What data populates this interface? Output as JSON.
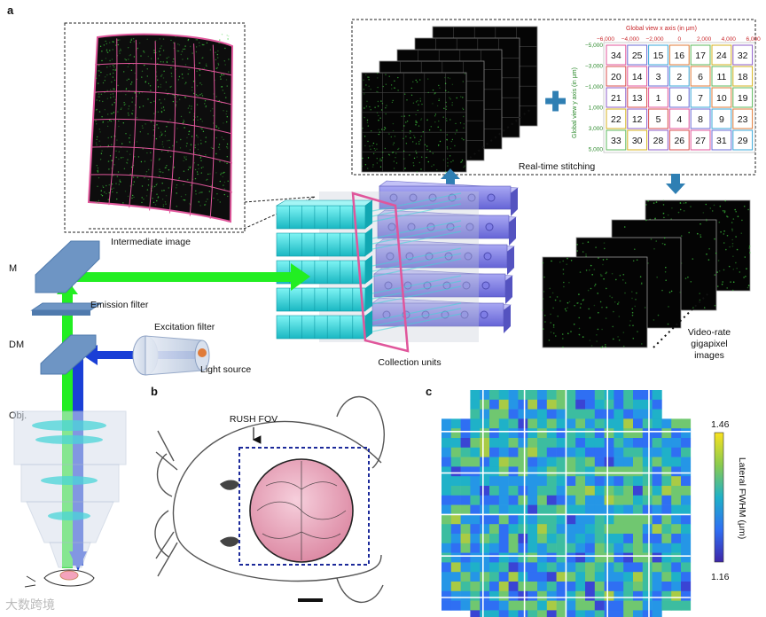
{
  "panels": {
    "a": "a",
    "b": "b",
    "c": "c"
  },
  "labels": {
    "intermediate_image": "Intermediate image",
    "real_time_stitching": "Real-time stitching",
    "collection_units": "Collection units",
    "m": "M",
    "emission_filter": "Emission filter",
    "excitation_filter": "Excitation filter",
    "dm": "DM",
    "light_source": "Light source",
    "obj": "Obj.",
    "video_rate_1": "Video-rate",
    "video_rate_2": "gigapixel",
    "video_rate_3": "images",
    "rush_fov": "RUSH FOV"
  },
  "global_view": {
    "x_axis_title": "Global view x axis (in μm)",
    "y_axis_title": "Global view y axis (in μm)",
    "x_ticks": [
      "−6,000",
      "−4,000",
      "−2,000",
      "0",
      "2,000",
      "4,000",
      "6,000"
    ],
    "y_ticks": [
      "−5,000",
      "−3,000",
      "−1,000",
      "1,000",
      "3,000",
      "5,000"
    ],
    "grid_rows": [
      [
        "34",
        "25",
        "15",
        "16",
        "17",
        "24",
        "32"
      ],
      [
        "20",
        "14",
        "3",
        "2",
        "6",
        "11",
        "18"
      ],
      [
        "21",
        "13",
        "1",
        "0",
        "7",
        "10",
        "19"
      ],
      [
        "22",
        "12",
        "5",
        "4",
        "8",
        "9",
        "23"
      ],
      [
        "33",
        "30",
        "28",
        "26",
        "27",
        "31",
        "29"
      ]
    ]
  },
  "colorbar": {
    "max": "1.46",
    "min": "1.16",
    "label": "Lateral FWHM (μm)"
  },
  "colors": {
    "emission": "#22ee22",
    "excitation": "#1a3fd6",
    "optic": "#6e95c4",
    "rush_box": "#1c2a9a",
    "brain": "#e7a2b8",
    "magenta_grid": "#e0569b",
    "stitch_arrow": "#2f7fb3"
  },
  "watermark": "大数跨境"
}
